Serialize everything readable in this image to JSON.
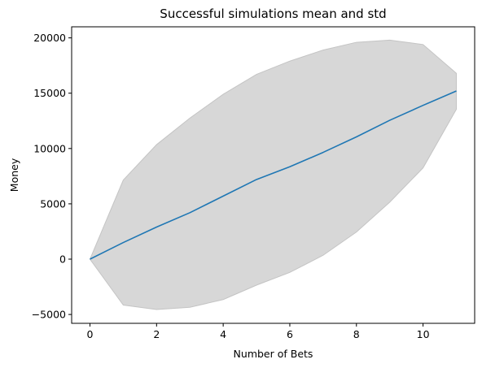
{
  "chart_data": {
    "type": "line",
    "title": "Successful simulations mean and std",
    "xlabel": "Number of Bets",
    "ylabel": "Money",
    "xlim": [
      -0.55,
      11.55
    ],
    "ylim": [
      -5800,
      21000
    ],
    "xticks": [
      0,
      2,
      4,
      6,
      8,
      10
    ],
    "yticks": [
      -5000,
      0,
      5000,
      10000,
      15000,
      20000
    ],
    "grid": false,
    "series": [
      {
        "type": "line",
        "color": "#1f77b4",
        "x": [
          0,
          1,
          2,
          3,
          4,
          5,
          6,
          7,
          8,
          9,
          10,
          11
        ],
        "values": [
          0,
          1500,
          2900,
          4200,
          5700,
          7200,
          8350,
          9650,
          11050,
          12550,
          13900,
          15200
        ]
      },
      {
        "type": "band",
        "color": "#d3d3d3",
        "x": [
          0,
          1,
          2,
          3,
          4,
          5,
          6,
          7,
          8,
          9,
          10,
          11
        ],
        "upper": [
          0,
          7150,
          10350,
          12750,
          14900,
          16700,
          17900,
          18900,
          19600,
          19800,
          19400,
          16800
        ],
        "lower": [
          0,
          -4150,
          -4550,
          -4350,
          -3650,
          -2350,
          -1200,
          350,
          2450,
          5150,
          8250,
          13550
        ]
      }
    ]
  }
}
